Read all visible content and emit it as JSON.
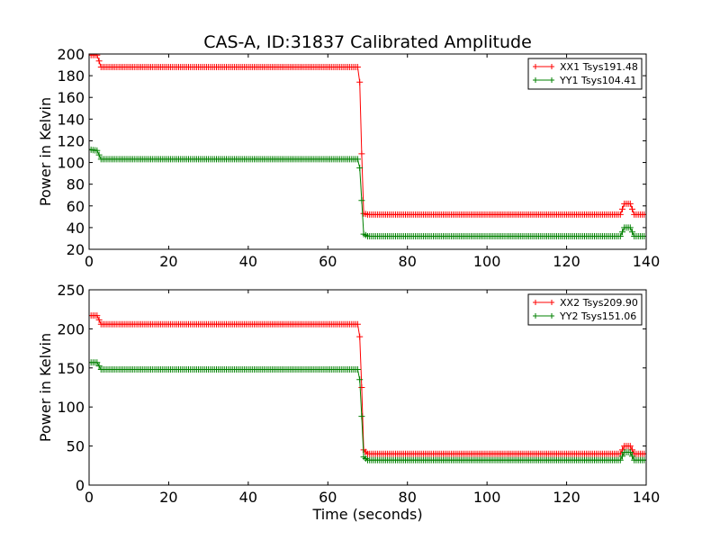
{
  "chart_data": [
    {
      "type": "line",
      "title": "CAS-A, ID:31837 Calibrated Amplitude",
      "xlabel": "",
      "ylabel": "Power in Kelvin",
      "xlim": [
        0,
        140
      ],
      "ylim": [
        20,
        200
      ],
      "xticks": [
        0,
        20,
        40,
        60,
        80,
        100,
        120,
        140
      ],
      "yticks": [
        20,
        40,
        60,
        80,
        100,
        120,
        140,
        160,
        180,
        200
      ],
      "legend_position": "top-right",
      "series": [
        {
          "name": "XX1 Tsys191.48",
          "color": "#ff0000",
          "points": [
            [
              0,
              199
            ],
            [
              2,
              199
            ],
            [
              3,
              188
            ],
            [
              67.5,
              188
            ],
            [
              68,
              174
            ],
            [
              68.5,
              108
            ],
            [
              69,
              53
            ],
            [
              70,
              52
            ],
            [
              133.5,
              52
            ],
            [
              134.5,
              62
            ],
            [
              136,
              62
            ],
            [
              137,
              52
            ],
            [
              140,
              52
            ]
          ]
        },
        {
          "name": "YY1 Tsys104.41",
          "color": "#008000",
          "points": [
            [
              0,
              112
            ],
            [
              2,
              111
            ],
            [
              3,
              103
            ],
            [
              67.5,
              103
            ],
            [
              68,
              95
            ],
            [
              68.5,
              65
            ],
            [
              69,
              34
            ],
            [
              70,
              32
            ],
            [
              133.5,
              32
            ],
            [
              134.5,
              40
            ],
            [
              136,
              40
            ],
            [
              137,
              32
            ],
            [
              140,
              32
            ]
          ]
        }
      ]
    },
    {
      "type": "line",
      "title": "",
      "xlabel": "Time (seconds)",
      "ylabel": "Power in Kelvin",
      "xlim": [
        0,
        140
      ],
      "ylim": [
        0,
        250
      ],
      "xticks": [
        0,
        20,
        40,
        60,
        80,
        100,
        120,
        140
      ],
      "yticks": [
        0,
        50,
        100,
        150,
        200,
        250
      ],
      "legend_position": "top-right",
      "series": [
        {
          "name": "XX2 Tsys209.90",
          "color": "#ff0000",
          "points": [
            [
              0,
              217
            ],
            [
              2,
              217
            ],
            [
              3,
              206
            ],
            [
              67.5,
              206
            ],
            [
              68,
              190
            ],
            [
              68.5,
              125
            ],
            [
              69,
              45
            ],
            [
              70,
              40
            ],
            [
              133.5,
              40
            ],
            [
              134.5,
              50
            ],
            [
              136,
              50
            ],
            [
              137,
              40
            ],
            [
              140,
              40
            ]
          ]
        },
        {
          "name": "YY2 Tsys151.06",
          "color": "#008000",
          "points": [
            [
              0,
              157
            ],
            [
              2,
              157
            ],
            [
              3,
              148
            ],
            [
              67.5,
              148
            ],
            [
              68,
              135
            ],
            [
              68.5,
              88
            ],
            [
              69,
              36
            ],
            [
              70,
              32
            ],
            [
              133.5,
              32
            ],
            [
              134.5,
              42
            ],
            [
              136,
              42
            ],
            [
              137,
              32
            ],
            [
              140,
              32
            ]
          ]
        }
      ]
    }
  ]
}
